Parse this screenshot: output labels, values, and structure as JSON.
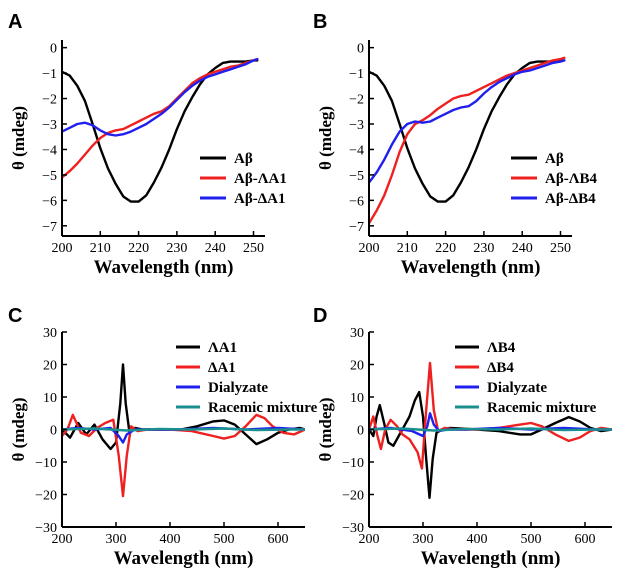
{
  "colors": {
    "black": "#000000",
    "red": "#ee2020",
    "blue": "#2020ee",
    "teal": "#1a8f8f"
  },
  "chart_data": [
    {
      "panel": "A",
      "type": "line",
      "xlabel": "Wavelength (nm)",
      "ylabel": "θ (mdeg)",
      "xlim": [
        200,
        253
      ],
      "ylim": [
        -7.4,
        0.3
      ],
      "xticks": [
        200,
        210,
        220,
        230,
        240,
        250
      ],
      "yticks": [
        0,
        -1,
        -2,
        -3,
        -4,
        -5,
        -6,
        -7
      ],
      "ytick_labels": [
        "0",
        "−1",
        "−2",
        "−3",
        "−4",
        "−5",
        "−6",
        "−7"
      ],
      "legend_position": "middle-right",
      "series": [
        {
          "name": "Aβ",
          "color": "#000000",
          "x": [
            200,
            202,
            204,
            206,
            208,
            210,
            212,
            214,
            216,
            218,
            220,
            222,
            224,
            226,
            228,
            230,
            232,
            234,
            236,
            238,
            240,
            242,
            244,
            246,
            248,
            250,
            251
          ],
          "y": [
            -0.95,
            -1.1,
            -1.5,
            -2.1,
            -3.0,
            -3.95,
            -4.75,
            -5.35,
            -5.85,
            -6.05,
            -6.05,
            -5.8,
            -5.3,
            -4.7,
            -4.0,
            -3.2,
            -2.5,
            -1.95,
            -1.45,
            -1.05,
            -0.8,
            -0.6,
            -0.55,
            -0.55,
            -0.55,
            -0.5,
            -0.5
          ]
        },
        {
          "name": "Aβ-ΛA1",
          "color": "#ee2020",
          "x": [
            200,
            202,
            204,
            206,
            208,
            210,
            212,
            214,
            216,
            218,
            220,
            222,
            224,
            226,
            228,
            230,
            232,
            234,
            236,
            238,
            240,
            242,
            244,
            246,
            248,
            250,
            251
          ],
          "y": [
            -5.1,
            -4.85,
            -4.55,
            -4.2,
            -3.85,
            -3.55,
            -3.35,
            -3.25,
            -3.2,
            -3.05,
            -2.9,
            -2.75,
            -2.6,
            -2.5,
            -2.3,
            -2.0,
            -1.7,
            -1.4,
            -1.2,
            -1.05,
            -0.95,
            -0.85,
            -0.75,
            -0.7,
            -0.6,
            -0.5,
            -0.45
          ]
        },
        {
          "name": "Aβ-ΔA1",
          "color": "#2020ee",
          "x": [
            200,
            202,
            204,
            206,
            208,
            210,
            212,
            214,
            216,
            218,
            220,
            222,
            224,
            226,
            228,
            230,
            232,
            234,
            236,
            238,
            240,
            242,
            244,
            246,
            248,
            250,
            251
          ],
          "y": [
            -3.3,
            -3.15,
            -3.0,
            -2.95,
            -3.05,
            -3.25,
            -3.4,
            -3.45,
            -3.4,
            -3.3,
            -3.15,
            -3.0,
            -2.8,
            -2.6,
            -2.35,
            -2.05,
            -1.75,
            -1.5,
            -1.3,
            -1.15,
            -1.05,
            -0.95,
            -0.85,
            -0.75,
            -0.65,
            -0.5,
            -0.45
          ]
        }
      ]
    },
    {
      "panel": "B",
      "type": "line",
      "xlabel": "Wavelength (nm)",
      "ylabel": "θ (mdeg)",
      "xlim": [
        200,
        253
      ],
      "ylim": [
        -7.4,
        0.3
      ],
      "xticks": [
        200,
        210,
        220,
        230,
        240,
        250
      ],
      "yticks": [
        0,
        -1,
        -2,
        -3,
        -4,
        -5,
        -6,
        -7
      ],
      "ytick_labels": [
        "0",
        "−1",
        "−2",
        "−3",
        "−4",
        "−5",
        "−6",
        "−7"
      ],
      "legend_position": "middle-right",
      "series": [
        {
          "name": "Aβ",
          "color": "#000000",
          "x": [
            200,
            202,
            204,
            206,
            208,
            210,
            212,
            214,
            216,
            218,
            220,
            222,
            224,
            226,
            228,
            230,
            232,
            234,
            236,
            238,
            240,
            242,
            244,
            246,
            248,
            250,
            251
          ],
          "y": [
            -0.95,
            -1.1,
            -1.5,
            -2.1,
            -3.0,
            -3.95,
            -4.75,
            -5.35,
            -5.85,
            -6.05,
            -6.05,
            -5.8,
            -5.3,
            -4.7,
            -4.0,
            -3.2,
            -2.5,
            -1.95,
            -1.45,
            -1.05,
            -0.8,
            -0.6,
            -0.55,
            -0.55,
            -0.55,
            -0.5,
            -0.5
          ]
        },
        {
          "name": "Aβ-ΛB4",
          "color": "#ee2020",
          "x": [
            200,
            202,
            204,
            206,
            208,
            210,
            212,
            214,
            216,
            218,
            220,
            222,
            224,
            226,
            228,
            230,
            232,
            234,
            236,
            238,
            240,
            242,
            244,
            246,
            248,
            250,
            251
          ],
          "y": [
            -6.9,
            -6.4,
            -5.8,
            -5.0,
            -4.1,
            -3.4,
            -3.0,
            -2.85,
            -2.65,
            -2.4,
            -2.2,
            -2.0,
            -1.9,
            -1.85,
            -1.7,
            -1.55,
            -1.4,
            -1.25,
            -1.1,
            -1.0,
            -0.9,
            -0.8,
            -0.7,
            -0.6,
            -0.5,
            -0.45,
            -0.4
          ]
        },
        {
          "name": "Aβ-ΔB4",
          "color": "#2020ee",
          "x": [
            200,
            202,
            204,
            206,
            208,
            210,
            212,
            214,
            216,
            218,
            220,
            222,
            224,
            226,
            228,
            230,
            232,
            234,
            236,
            238,
            240,
            242,
            244,
            246,
            248,
            250,
            251
          ],
          "y": [
            -5.3,
            -4.9,
            -4.4,
            -3.8,
            -3.3,
            -3.0,
            -2.9,
            -2.95,
            -2.9,
            -2.75,
            -2.6,
            -2.45,
            -2.35,
            -2.3,
            -2.1,
            -1.8,
            -1.55,
            -1.35,
            -1.2,
            -1.05,
            -0.95,
            -0.9,
            -0.8,
            -0.7,
            -0.6,
            -0.55,
            -0.5
          ]
        }
      ]
    },
    {
      "panel": "C",
      "type": "line",
      "xlabel": "Wavelength (nm)",
      "ylabel": "θ (mdeg)",
      "xlim": [
        200,
        650
      ],
      "ylim": [
        -30,
        30
      ],
      "xticks": [
        200,
        300,
        400,
        500,
        600
      ],
      "yticks": [
        30,
        20,
        10,
        0,
        -10,
        -20,
        -30
      ],
      "ytick_labels": [
        "30",
        "20",
        "10",
        "0",
        "−10",
        "−20",
        "−30"
      ],
      "legend_position": "top-right",
      "series": [
        {
          "name": "ΛA1",
          "color": "#000000",
          "x": [
            200,
            215,
            230,
            245,
            260,
            275,
            290,
            300,
            308,
            313,
            318,
            325,
            335,
            350,
            380,
            420,
            450,
            480,
            500,
            520,
            540,
            560,
            580,
            600,
            620,
            640,
            650
          ],
          "y": [
            0,
            -2.5,
            2,
            -1.5,
            1.5,
            -3,
            -6,
            -4,
            8,
            20,
            8,
            -1,
            0.5,
            0,
            0,
            0,
            1,
            2.5,
            2.8,
            1.5,
            -1.5,
            -4.5,
            -3,
            -1,
            0,
            0.5,
            0
          ]
        },
        {
          "name": "ΔA1",
          "color": "#ee2020",
          "x": [
            200,
            210,
            220,
            235,
            250,
            265,
            280,
            295,
            305,
            313,
            320,
            328,
            340,
            360,
            400,
            440,
            480,
            500,
            520,
            540,
            560,
            575,
            590,
            610,
            630,
            650
          ],
          "y": [
            -2,
            0,
            4.5,
            -1,
            -2,
            0.5,
            2,
            3,
            -8,
            -20.5,
            -8,
            1,
            -0.5,
            0,
            0,
            -0.5,
            -2,
            -2.8,
            -2,
            1,
            4.5,
            3.5,
            1,
            -1,
            -1.5,
            0
          ]
        },
        {
          "name": "Dialyzate",
          "color": "#2020ee",
          "x": [
            200,
            230,
            260,
            290,
            305,
            313,
            320,
            335,
            360,
            420,
            480,
            540,
            600,
            650
          ],
          "y": [
            0,
            0.5,
            0,
            0.5,
            -2,
            -4,
            -1.5,
            0,
            0,
            0,
            0.5,
            0,
            0.5,
            0
          ]
        },
        {
          "name": "Racemic mixture",
          "color": "#1a8f8f",
          "x": [
            200,
            260,
            320,
            380,
            440,
            500,
            560,
            620,
            650
          ],
          "y": [
            0,
            0.3,
            -0.3,
            0.2,
            0,
            0.3,
            -0.2,
            0,
            0
          ]
        }
      ]
    },
    {
      "panel": "D",
      "type": "line",
      "xlabel": "Wavelength (nm)",
      "ylabel": "θ (mdeg)",
      "xlim": [
        200,
        650
      ],
      "ylim": [
        -30,
        30
      ],
      "xticks": [
        200,
        300,
        400,
        500,
        600
      ],
      "yticks": [
        30,
        20,
        10,
        0,
        -10,
        -20,
        -30
      ],
      "ytick_labels": [
        "30",
        "20",
        "10",
        "0",
        "−10",
        "−20",
        "−30"
      ],
      "legend_position": "top-right",
      "series": [
        {
          "name": "ΛB4",
          "color": "#000000",
          "x": [
            200,
            208,
            214,
            220,
            228,
            236,
            245,
            255,
            265,
            275,
            285,
            293,
            300,
            306,
            312,
            318,
            325,
            335,
            350,
            400,
            440,
            480,
            500,
            520,
            545,
            570,
            590,
            610,
            630,
            650
          ],
          "y": [
            0,
            -2,
            4,
            7.5,
            2,
            -4,
            -5,
            -2,
            1,
            4,
            9,
            11.5,
            4,
            -9,
            -21,
            -9,
            -1,
            0,
            0.5,
            0,
            -0.5,
            -1.5,
            -1.5,
            0,
            2,
            3.8,
            2.5,
            0.5,
            -0.5,
            0
          ]
        },
        {
          "name": "ΔB4",
          "color": "#ee2020",
          "x": [
            200,
            208,
            215,
            222,
            230,
            240,
            252,
            262,
            275,
            290,
            298,
            306,
            313,
            320,
            328,
            340,
            360,
            400,
            440,
            480,
            500,
            520,
            545,
            570,
            590,
            610,
            630,
            650
          ],
          "y": [
            0,
            4,
            -1.5,
            -6,
            0,
            3,
            1,
            -1.5,
            -3,
            -7,
            -12,
            6,
            20.5,
            6,
            -0.5,
            0.5,
            0,
            0,
            0.5,
            1.5,
            2,
            1,
            -1.5,
            -3.5,
            -2.5,
            -0.5,
            0.5,
            0
          ]
        },
        {
          "name": "Dialyzate",
          "color": "#2020ee",
          "x": [
            200,
            240,
            280,
            300,
            308,
            313,
            320,
            330,
            345,
            380,
            440,
            500,
            560,
            620,
            650
          ],
          "y": [
            0,
            0.5,
            -0.5,
            -2,
            1,
            5,
            1.5,
            -0.5,
            0,
            0,
            0.5,
            0,
            0.5,
            0,
            0
          ]
        },
        {
          "name": "Racemic mixture",
          "color": "#1a8f8f",
          "x": [
            200,
            260,
            320,
            380,
            440,
            500,
            560,
            620,
            650
          ],
          "y": [
            0,
            0.3,
            -0.3,
            0.2,
            0,
            0.3,
            -0.2,
            0,
            0
          ]
        }
      ]
    }
  ]
}
